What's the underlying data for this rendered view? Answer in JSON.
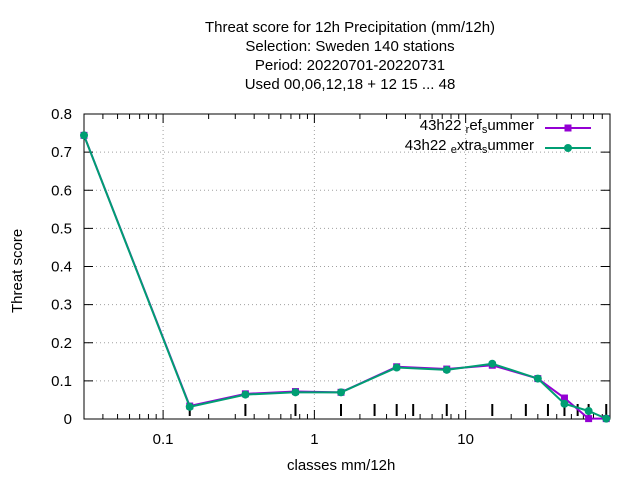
{
  "chart_data": {
    "type": "line",
    "title_lines": [
      "Threat score  for 12h Precipitation (mm/12h)",
      "Selection: Sweden    140 stations",
      "Period: 20220701-20220731",
      "Used  00,06,12,18  + 12 15 ... 48"
    ],
    "xlabel": "classes mm/12h",
    "ylabel": "Threat score",
    "x_scale": "log",
    "xlim": [
      0.03,
      90
    ],
    "ylim": [
      0,
      0.8
    ],
    "x_ticks": [
      {
        "value": 0.1,
        "label": "0.1"
      },
      {
        "value": 1,
        "label": "1"
      },
      {
        "value": 10,
        "label": "10"
      }
    ],
    "y_ticks": [
      {
        "value": 0,
        "label": "0"
      },
      {
        "value": 0.1,
        "label": "0.1"
      },
      {
        "value": 0.2,
        "label": "0.2"
      },
      {
        "value": 0.3,
        "label": "0.3"
      },
      {
        "value": 0.4,
        "label": "0.4"
      },
      {
        "value": 0.5,
        "label": "0.5"
      },
      {
        "value": 0.6,
        "label": "0.6"
      },
      {
        "value": 0.7,
        "label": "0.7"
      },
      {
        "value": 0.8,
        "label": "0.8"
      }
    ],
    "grid": true,
    "legend_position": "top-right",
    "x": [
      0.03,
      0.15,
      0.35,
      0.75,
      1.5,
      3.5,
      7.5,
      15,
      30,
      45,
      65,
      85
    ],
    "series": [
      {
        "legend_parts": [
          {
            "text": "43h22 ",
            "style": "normal"
          },
          {
            "text": "r",
            "style": "sub"
          },
          {
            "text": "ef",
            "style": "normal"
          },
          {
            "text": "s",
            "style": "sub"
          },
          {
            "text": "ummer",
            "style": "normal"
          }
        ],
        "color": "#9400d3",
        "marker": "square",
        "values": [
          0.744,
          0.034,
          0.066,
          0.072,
          0.07,
          0.137,
          0.131,
          0.141,
          0.106,
          0.055,
          0.001,
          0.001
        ]
      },
      {
        "legend_parts": [
          {
            "text": "43h22 ",
            "style": "normal"
          },
          {
            "text": "e",
            "style": "sub"
          },
          {
            "text": "xtra",
            "style": "normal"
          },
          {
            "text": "s",
            "style": "sub"
          },
          {
            "text": "ummer",
            "style": "normal"
          }
        ],
        "color": "#009e73",
        "marker": "circle",
        "values": [
          0.744,
          0.032,
          0.064,
          0.07,
          0.07,
          0.135,
          0.129,
          0.145,
          0.106,
          0.04,
          0.021,
          0.001
        ]
      }
    ],
    "minor_tick_marks_x": [
      0.15,
      0.35,
      0.75,
      1.5,
      2.5,
      3.5,
      4.5,
      7.5,
      15,
      25,
      35,
      45,
      55,
      65,
      85
    ]
  }
}
